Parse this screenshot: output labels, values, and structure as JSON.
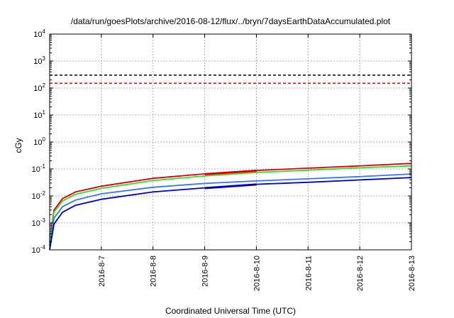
{
  "chart_data": {
    "type": "line",
    "title": "/data/run/goesPlots/archive/2016-08-12/flux/../bryn/7daysEarthDataAccumulated.plot",
    "xlabel": "Coordinated Universal Time (UTC)",
    "ylabel": "cGy",
    "y_scale": "log",
    "ylim": [
      0.0001,
      10000
    ],
    "y_ticks": [
      {
        "base": "10",
        "exp": "-4",
        "value": 0.0001
      },
      {
        "base": "10",
        "exp": "-3",
        "value": 0.001
      },
      {
        "base": "10",
        "exp": "-2",
        "value": 0.01
      },
      {
        "base": "10",
        "exp": "-1",
        "value": 0.1
      },
      {
        "base": "10",
        "exp": "0",
        "value": 1
      },
      {
        "base": "10",
        "exp": "1",
        "value": 10
      },
      {
        "base": "10",
        "exp": "2",
        "value": 100
      },
      {
        "base": "10",
        "exp": "3",
        "value": 1000
      },
      {
        "base": "10",
        "exp": "4",
        "value": 10000
      }
    ],
    "xlim": [
      "2016-08-06T00:00",
      "2016-08-13T00:00"
    ],
    "x_ticks": [
      {
        "label": "2016-8-7",
        "t": "2016-08-07T00:00"
      },
      {
        "label": "2016-8-8",
        "t": "2016-08-08T00:00"
      },
      {
        "label": "2016-8-9",
        "t": "2016-08-09T00:00"
      },
      {
        "label": "2016-8-10",
        "t": "2016-08-10T00:00"
      },
      {
        "label": "2016-8-11",
        "t": "2016-08-11T00:00"
      },
      {
        "label": "2016-8-12",
        "t": "2016-08-12T00:00"
      },
      {
        "label": "2016-8-13",
        "t": "2016-08-13T00:00"
      }
    ],
    "grid": true,
    "reference_lines": [
      {
        "value": 300,
        "color": "#000000",
        "style": "dashed"
      },
      {
        "value": 150,
        "color": "#ff0000",
        "style": "dashed"
      }
    ],
    "series": [
      {
        "color": "#dd0000",
        "points": [
          [
            "2016-08-06T00:00",
            0.0002
          ],
          [
            "2016-08-06T02:00",
            0.003
          ],
          [
            "2016-08-06T06:00",
            0.008
          ],
          [
            "2016-08-06T12:00",
            0.014
          ],
          [
            "2016-08-07T00:00",
            0.023
          ],
          [
            "2016-08-08T00:00",
            0.045
          ],
          [
            "2016-08-09T00:00",
            0.066
          ],
          [
            "2016-08-10T00:00",
            0.088
          ],
          [
            "2016-08-11T00:00",
            0.107
          ],
          [
            "2016-08-12T00:00",
            0.13
          ],
          [
            "2016-08-13T00:00",
            0.16
          ]
        ]
      },
      {
        "color": "#33dd33",
        "points": [
          [
            "2016-08-06T00:00",
            0.00015
          ],
          [
            "2016-08-06T02:00",
            0.0025
          ],
          [
            "2016-08-06T06:00",
            0.0065
          ],
          [
            "2016-08-06T12:00",
            0.0115
          ],
          [
            "2016-08-07T00:00",
            0.019
          ],
          [
            "2016-08-08T00:00",
            0.037
          ],
          [
            "2016-08-09T00:00",
            0.055
          ],
          [
            "2016-08-10T00:00",
            0.074
          ],
          [
            "2016-08-11T00:00",
            0.09
          ],
          [
            "2016-08-12T00:00",
            0.11
          ],
          [
            "2016-08-13T00:00",
            0.13
          ]
        ]
      },
      {
        "color": "#3377ee",
        "points": [
          [
            "2016-08-06T00:00",
            0.0001
          ],
          [
            "2016-08-06T02:00",
            0.0015
          ],
          [
            "2016-08-06T06:00",
            0.004
          ],
          [
            "2016-08-06T12:00",
            0.007
          ],
          [
            "2016-08-07T00:00",
            0.012
          ],
          [
            "2016-08-08T00:00",
            0.021
          ],
          [
            "2016-08-09T00:00",
            0.029
          ],
          [
            "2016-08-10T00:00",
            0.036
          ],
          [
            "2016-08-11T00:00",
            0.043
          ],
          [
            "2016-08-12T00:00",
            0.052
          ],
          [
            "2016-08-13T00:00",
            0.065
          ]
        ]
      },
      {
        "color": "#0000cc",
        "points": [
          [
            "2016-08-06T00:00",
            0.0001
          ],
          [
            "2016-08-06T02:00",
            0.0009
          ],
          [
            "2016-08-06T06:00",
            0.0025
          ],
          [
            "2016-08-06T12:00",
            0.0045
          ],
          [
            "2016-08-07T00:00",
            0.0075
          ],
          [
            "2016-08-08T00:00",
            0.014
          ],
          [
            "2016-08-09T00:00",
            0.02
          ],
          [
            "2016-08-10T00:00",
            0.027
          ],
          [
            "2016-08-11T00:00",
            0.032
          ],
          [
            "2016-08-12T00:00",
            0.039
          ],
          [
            "2016-08-13T00:00",
            0.048
          ]
        ]
      }
    ],
    "highlight_segments": [
      {
        "color": "#dd0000",
        "points": [
          [
            "2016-08-09T00:00",
            0.064
          ],
          [
            "2016-08-10T00:00",
            0.086
          ]
        ]
      },
      {
        "color": "#0000cc",
        "points": [
          [
            "2016-08-09T00:00",
            0.0195
          ],
          [
            "2016-08-10T00:00",
            0.0265
          ]
        ]
      }
    ]
  }
}
